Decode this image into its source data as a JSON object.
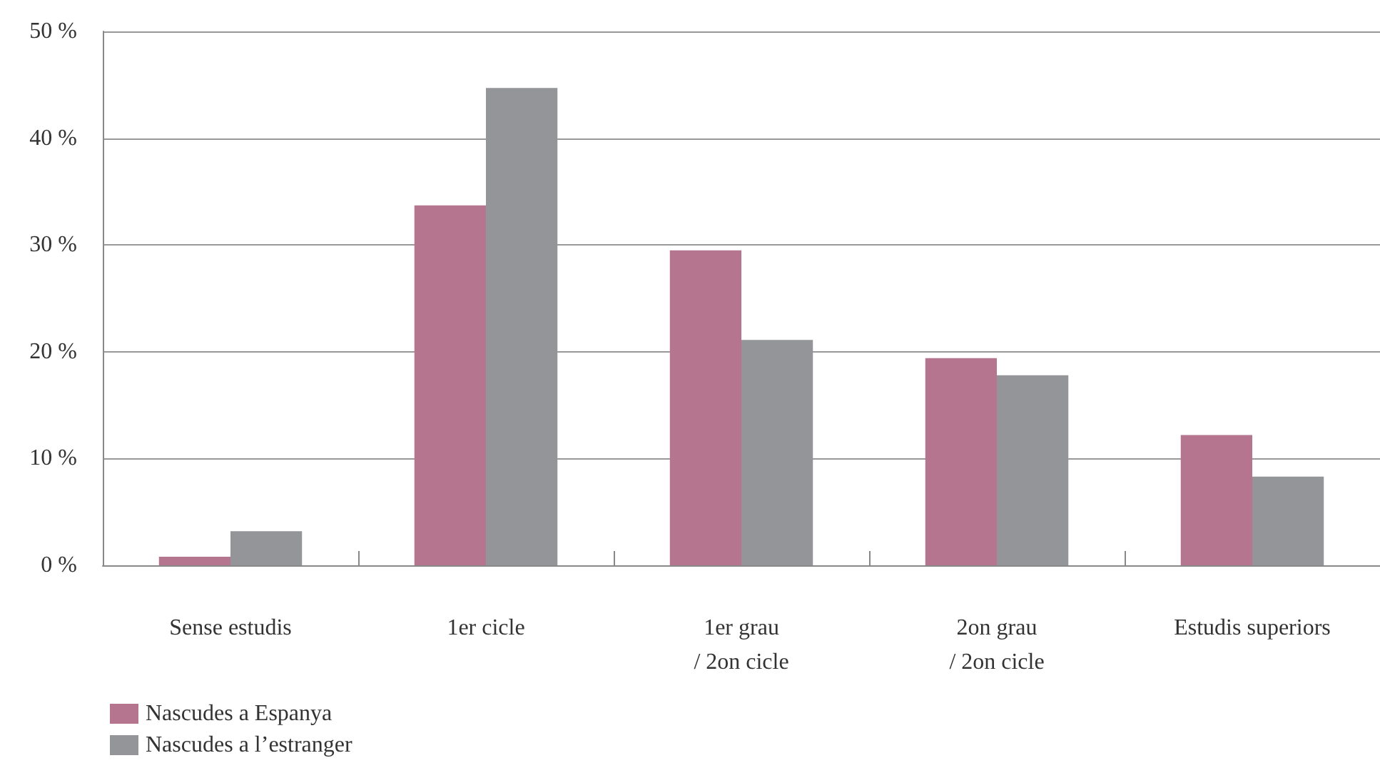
{
  "chart_data": {
    "type": "bar",
    "categories": [
      "Sense estudis",
      "1er cicle",
      "1er grau\n/ 2on cicle",
      "2on grau\n/ 2on cicle",
      "Estudis superiors"
    ],
    "series": [
      {
        "name": "Nascudes a Espanya",
        "color": "#b5758f",
        "values": [
          0.8,
          33.7,
          29.5,
          19.4,
          12.2
        ]
      },
      {
        "name": "Nascudes a l’estranger",
        "color": "#939598",
        "values": [
          3.2,
          44.7,
          21.1,
          17.8,
          8.3
        ]
      }
    ],
    "ylim": [
      0,
      50
    ],
    "yticks": [
      {
        "value": 0,
        "label": "0 %"
      },
      {
        "value": 10,
        "label": "10 %"
      },
      {
        "value": 20,
        "label": "20 %"
      },
      {
        "value": 30,
        "label": "30 %"
      },
      {
        "value": 40,
        "label": "40 %"
      },
      {
        "value": 50,
        "label": "50 %"
      }
    ],
    "grid": "y",
    "legend": "bottom left"
  }
}
